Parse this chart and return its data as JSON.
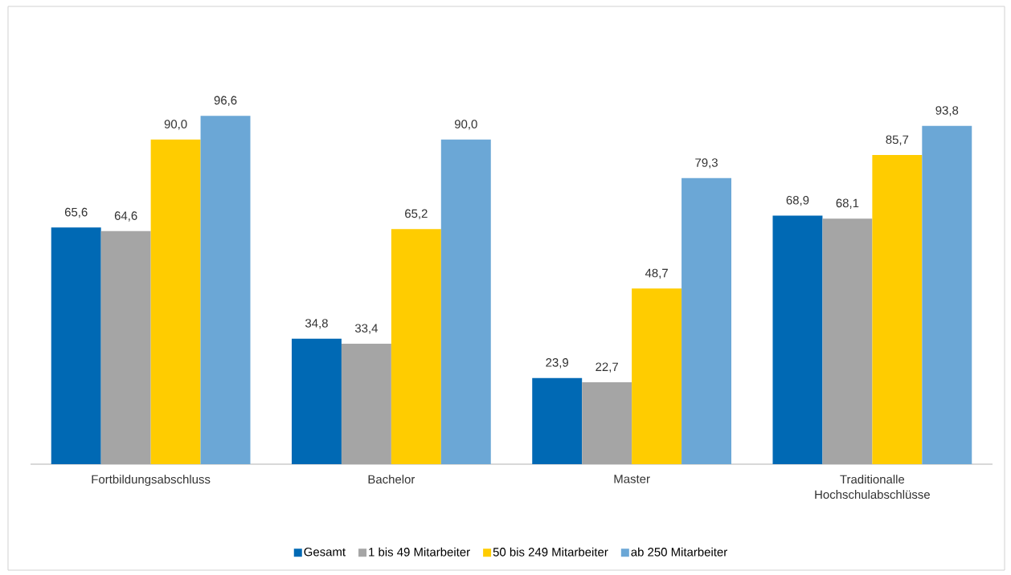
{
  "chart_data": {
    "type": "bar",
    "categories": [
      "Fortbildungsabschluss",
      "Bachelor",
      "Master",
      "Traditionalle Hochschulabschlüsse"
    ],
    "series": [
      {
        "name": "Gesamt",
        "color": "#0069b4",
        "values": [
          65.6,
          34.8,
          23.9,
          68.9
        ],
        "value_labels": [
          "65,6",
          "34,8",
          "23,9",
          "68,9"
        ]
      },
      {
        "name": "1 bis 49 Mitarbeiter",
        "color": "#a5a5a5",
        "values": [
          64.6,
          33.4,
          22.7,
          68.1
        ],
        "value_labels": [
          "64,6",
          "33,4",
          "22,7",
          "68,1"
        ]
      },
      {
        "name": "50 bis 249 Mitarbeiter",
        "color": "#ffcc00",
        "values": [
          90.0,
          65.2,
          48.7,
          85.7
        ],
        "value_labels": [
          "90,0",
          "65,2",
          "48,7",
          "85,7"
        ]
      },
      {
        "name": "ab 250 Mitarbeiter",
        "color": "#6ba7d6",
        "values": [
          96.6,
          90.0,
          79.3,
          93.8
        ],
        "value_labels": [
          "96,6",
          "90,0",
          "79,3",
          "93,8"
        ]
      }
    ],
    "legend": "bottom"
  }
}
